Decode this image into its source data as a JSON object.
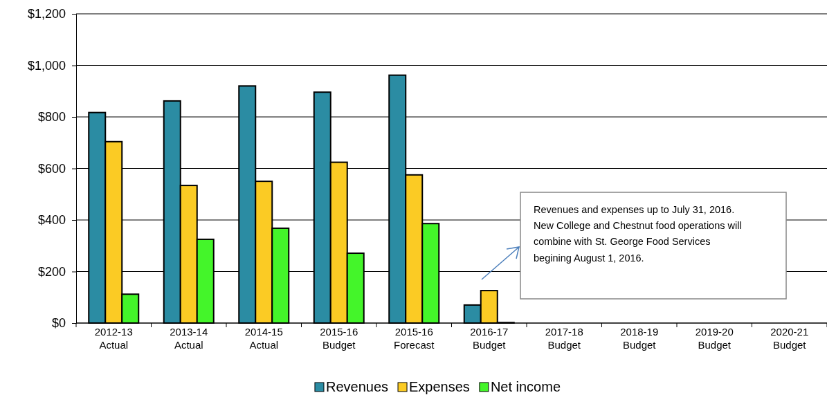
{
  "chart_data": {
    "type": "bar",
    "categories": [
      "2012-13 Actual",
      "2013-14 Actual",
      "2014-15 Actual",
      "2015-16 Budget",
      "2015-16 Forecast",
      "2016-17 Budget",
      "2017-18 Budget",
      "2018-19 Budget",
      "2019-20 Budget",
      "2020-21 Budget"
    ],
    "series": [
      {
        "name": "Revenues",
        "color": "#2b8ca3",
        "values": [
          817,
          862,
          920,
          896,
          962,
          70,
          null,
          null,
          null,
          null
        ]
      },
      {
        "name": "Expenses",
        "color": "#fbcb24",
        "values": [
          704,
          534,
          550,
          624,
          575,
          126,
          null,
          null,
          null,
          null
        ]
      },
      {
        "name": "Net income",
        "color": "#44f52a",
        "values": [
          112,
          325,
          368,
          271,
          386,
          2,
          null,
          null,
          null,
          null
        ]
      }
    ],
    "ylim": [
      0,
      1200
    ],
    "yticks": [
      {
        "value": 0,
        "label": "$0"
      },
      {
        "value": 200,
        "label": "$200"
      },
      {
        "value": 400,
        "label": "$400"
      },
      {
        "value": 600,
        "label": "$600"
      },
      {
        "value": 800,
        "label": "$800"
      },
      {
        "value": 1000,
        "label": "$1,000"
      },
      {
        "value": 1200,
        "label": "$1,200"
      }
    ],
    "grid": "y",
    "legend": "bottom",
    "annotations": [
      "Revenues and expenses up to July 31, 2016.  New College and Chestnut food operations will combine with St. George Food Services begining August 1, 2016."
    ]
  }
}
